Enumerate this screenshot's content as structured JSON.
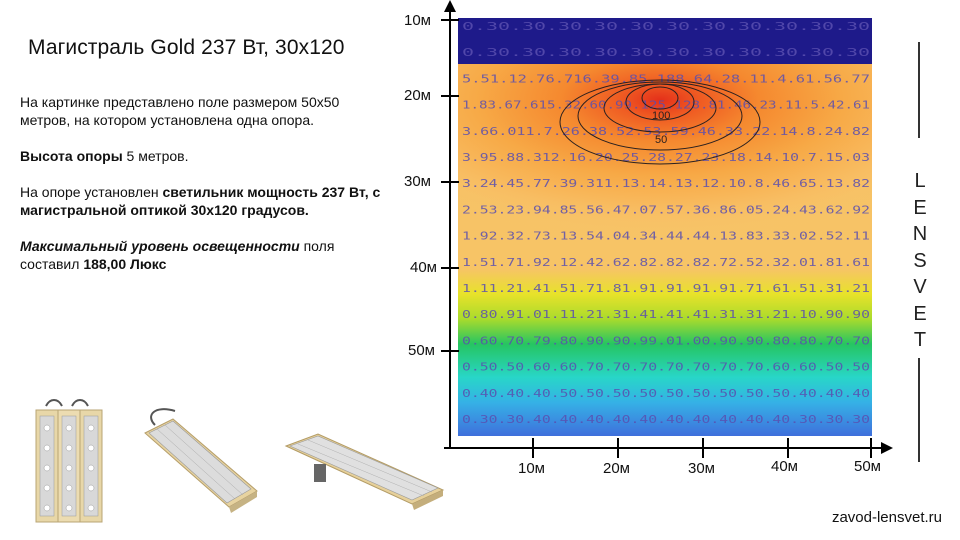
{
  "title": "Магистраль Gold 237 Вт, 30х120",
  "description": {
    "p1": "На картинке представлено поле размером 50х50 метров, на котором установлена одна опора.",
    "p2_label": "Высота опоры",
    "p2_value": " 5 метров.",
    "p3_prefix": "На опоре установлен ",
    "p3_bold": "светильник мощность 237 Вт, с магистральной оптикой 30х120 градусов.",
    "p4_label": "Максимальный уровень освещенности",
    "p4_mid": " поля составил ",
    "p4_value": "188,00 Люкс"
  },
  "brand_letters": [
    "L",
    "E",
    "N",
    "S",
    "V",
    "E",
    "T"
  ],
  "footer_url": "zavod-lensvet.ru",
  "axes": {
    "x_ticks": [
      "10м",
      "20м",
      "30м",
      "40м",
      "50м"
    ],
    "y_ticks": [
      "10м",
      "20м",
      "30м",
      "40м",
      "50м"
    ]
  },
  "contour_labels": [
    "100",
    "50"
  ],
  "value_rows": [
    "0.30.30.30.30.30.30.30.30.30.30.30",
    "0.30.30.30.30.30.30.30.30.30.30.30",
    "5.51.12.76.716.39.85.188.64.28.11.4.61.56.77",
    "1.83.67.615.32.60.99.125.128.81.46.23.11.5.42.61",
    "3.66.011.7.26.38.52.53.59.46.33.22.14.8.24.82",
    "3.95.88.312.16.20.25.28.27.23.18.14.10.7.15.03",
    "3.24.45.77.39.311.13.14.13.12.10.8.46.65.13.82",
    "2.53.23.94.85.56.47.07.57.36.86.05.24.43.62.92",
    "1.92.32.73.13.54.04.34.44.44.13.83.33.02.52.11",
    "1.51.71.92.12.42.62.82.82.82.72.52.32.01.81.61",
    "1.11.21.41.51.71.81.91.91.91.91.71.61.51.31.21",
    "0.80.91.01.11.21.31.41.41.41.31.31.21.10.90.90",
    "0.60.70.79.80.90.90.99.01.00.90.90.80.80.70.70",
    "0.50.50.60.60.70.70.70.70.70.70.70.60.60.50.50",
    "0.40.40.40.50.50.50.50.50.50.50.50.50.40.40.40",
    "0.30.30.40.40.40.40.40.40.40.40.40.40.30.30.30"
  ],
  "chart_data": {
    "type": "heatmap",
    "field_size_m": [
      50,
      50
    ],
    "max_lux": 188.0,
    "pole_height_m": 5,
    "contours": [
      100,
      50
    ],
    "colors": {
      "top_band": "#1e1a8a",
      "hot": "#e83a1a",
      "warm": "#f59a36",
      "mid": "#f8c468",
      "yellow": "#e9e324",
      "green": "#22c462",
      "cyan": "#2ad7d6",
      "blue": "#3d7fde"
    }
  }
}
